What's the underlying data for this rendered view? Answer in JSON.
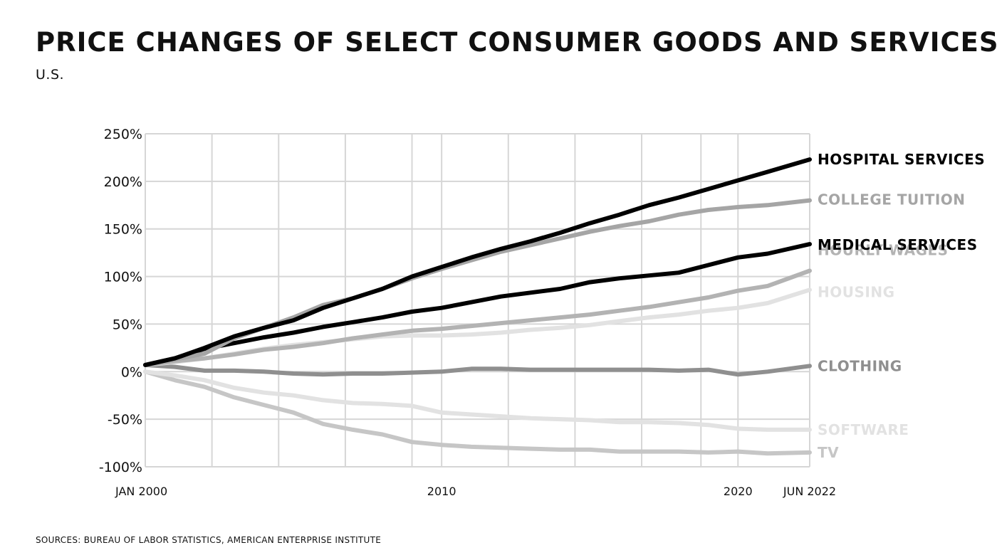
{
  "chart_data": {
    "type": "line",
    "title": "PRICE CHANGES OF SELECT CONSUMER GOODS AND SERVICES",
    "subtitle": "U.S.",
    "source": "SOURCES: BUREAU OF LABOR STATISTICS, AMERICAN ENTERPRISE INSTITUTE",
    "xlabel": "",
    "ylabel": "",
    "xlim": [
      2000,
      2022.42
    ],
    "ylim": [
      -100,
      250
    ],
    "grid": true,
    "legend": "direct-labels-right",
    "y_ticks": [
      {
        "value": 250,
        "label": "250%"
      },
      {
        "value": 200,
        "label": "200%"
      },
      {
        "value": 150,
        "label": "150%"
      },
      {
        "value": 100,
        "label": "100%"
      },
      {
        "value": 50,
        "label": "50%"
      },
      {
        "value": 0,
        "label": "0%"
      },
      {
        "value": -50,
        "label": "-50%"
      },
      {
        "value": -100,
        "label": "-100%"
      }
    ],
    "x_gridlines": [
      2000,
      2002.25,
      2004.5,
      2006.75,
      2009,
      2010,
      2012.25,
      2014.5,
      2016.75,
      2018.75,
      2020,
      2022.42
    ],
    "x_ticks": [
      {
        "value": 2000,
        "label": "JAN 2000",
        "anchor": "start"
      },
      {
        "value": 2010,
        "label": "2010",
        "anchor": "middle"
      },
      {
        "value": 2020,
        "label": "2020",
        "anchor": "middle"
      },
      {
        "value": 2022.42,
        "label": "JUN 2022",
        "anchor": "middle"
      }
    ],
    "series": [
      {
        "name": "TV",
        "color": "#c6c6c6",
        "x": [
          2000,
          2001,
          2002,
          2003,
          2004,
          2005,
          2006,
          2007,
          2008,
          2009,
          2010,
          2011,
          2012,
          2013,
          2014,
          2015,
          2016,
          2017,
          2018,
          2019,
          2020,
          2021,
          2022.42
        ],
        "values": [
          0,
          -9,
          -16,
          -27,
          -35,
          -43,
          -55,
          -61,
          -66,
          -74,
          -77,
          -79,
          -80,
          -81,
          -82,
          -82,
          -84,
          -84,
          -84,
          -85,
          -84,
          -86,
          -85
        ]
      },
      {
        "name": "SOFTWARE",
        "color": "#e2e2e2",
        "x": [
          2000,
          2001,
          2002,
          2003,
          2004,
          2005,
          2006,
          2007,
          2008,
          2009,
          2010,
          2011,
          2012,
          2013,
          2014,
          2015,
          2016,
          2017,
          2018,
          2019,
          2020,
          2021,
          2022.42
        ],
        "values": [
          0,
          -4,
          -9,
          -17,
          -22,
          -25,
          -30,
          -33,
          -34,
          -36,
          -43,
          -45,
          -47,
          -49,
          -50,
          -51,
          -53,
          -53,
          -54,
          -56,
          -60,
          -61,
          -61
        ]
      },
      {
        "name": "CLOTHING",
        "color": "#8f8f8f",
        "x": [
          2000,
          2001,
          2002,
          2003,
          2004,
          2005,
          2006,
          2007,
          2008,
          2009,
          2010,
          2011,
          2012,
          2013,
          2014,
          2015,
          2016,
          2017,
          2018,
          2019,
          2020,
          2021,
          2022.42
        ],
        "values": [
          7,
          5,
          1,
          1,
          0,
          -2,
          -3,
          -2,
          -2,
          -1,
          0,
          3,
          3,
          2,
          2,
          2,
          2,
          2,
          1,
          2,
          -3,
          0,
          6
        ]
      },
      {
        "name": "HOUSING",
        "color": "#e2e2e2",
        "x": [
          2000,
          2001,
          2002,
          2003,
          2004,
          2005,
          2006,
          2007,
          2008,
          2009,
          2010,
          2011,
          2012,
          2013,
          2014,
          2015,
          2016,
          2017,
          2018,
          2019,
          2020,
          2021,
          2022.42
        ],
        "values": [
          7,
          10,
          14,
          19,
          24,
          28,
          31,
          34,
          37,
          38,
          38,
          39,
          41,
          44,
          46,
          49,
          53,
          57,
          60,
          64,
          67,
          72,
          86
        ]
      },
      {
        "name": "HOURLY WAGES",
        "color": "#b3b3b3",
        "x": [
          2000,
          2001,
          2002,
          2003,
          2004,
          2005,
          2006,
          2007,
          2008,
          2009,
          2010,
          2011,
          2012,
          2013,
          2014,
          2015,
          2016,
          2017,
          2018,
          2019,
          2020,
          2021,
          2022.42
        ],
        "values": [
          7,
          11,
          14,
          18,
          23,
          26,
          30,
          35,
          39,
          43,
          45,
          48,
          51,
          54,
          57,
          60,
          64,
          68,
          73,
          78,
          85,
          90,
          106
        ]
      },
      {
        "name": "MEDICAL SERVICES",
        "color": "#000000",
        "x": [
          2000,
          2001,
          2002,
          2003,
          2004,
          2005,
          2006,
          2007,
          2008,
          2009,
          2010,
          2011,
          2012,
          2013,
          2014,
          2015,
          2016,
          2017,
          2018,
          2019,
          2020,
          2021,
          2022.42
        ],
        "values": [
          7,
          14,
          24,
          30,
          36,
          41,
          47,
          52,
          57,
          63,
          67,
          73,
          79,
          83,
          87,
          94,
          98,
          101,
          104,
          112,
          120,
          124,
          134
        ]
      },
      {
        "name": "COLLEGE TUITION",
        "color": "#a5a5a5",
        "x": [
          2000,
          2001,
          2002,
          2003,
          2004,
          2005,
          2006,
          2007,
          2008,
          2009,
          2010,
          2011,
          2012,
          2013,
          2014,
          2015,
          2016,
          2017,
          2018,
          2019,
          2020,
          2021,
          2022.42
        ],
        "values": [
          7,
          13,
          19,
          35,
          46,
          57,
          70,
          77,
          87,
          98,
          108,
          117,
          126,
          133,
          140,
          147,
          153,
          158,
          165,
          170,
          173,
          175,
          180
        ]
      },
      {
        "name": "HOSPITAL SERVICES",
        "color": "#000000",
        "x": [
          2000,
          2001,
          2002,
          2003,
          2004,
          2005,
          2006,
          2007,
          2008,
          2009,
          2010,
          2011,
          2012,
          2013,
          2014,
          2015,
          2016,
          2017,
          2018,
          2019,
          2020,
          2021,
          2022.42
        ],
        "values": [
          7,
          14,
          25,
          37,
          46,
          54,
          67,
          77,
          87,
          100,
          110,
          120,
          129,
          137,
          146,
          156,
          165,
          175,
          183,
          192,
          201,
          210,
          223
        ]
      }
    ]
  }
}
